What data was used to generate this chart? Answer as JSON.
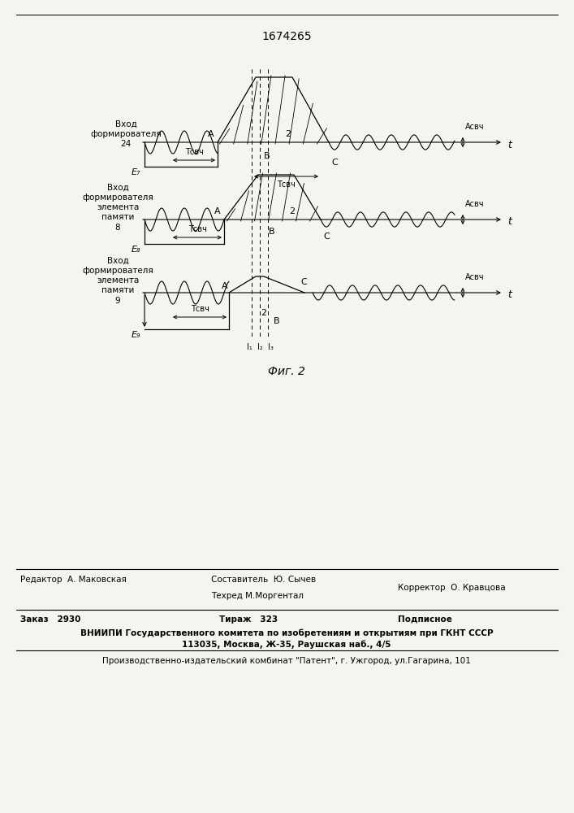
{
  "title": "1674265",
  "fig_label": "Фиг. 2",
  "bg_color": "#f5f5f0",
  "line_color": "#000000",
  "channel_labels": [
    "Вход\nформирователя\n24",
    "Вход\nформирователя\nэлемента\nпамяти\n8",
    "Вход\nформирователя\nэлемента\nпамяти\n9"
  ],
  "e_labels": [
    "E₇",
    "E₈",
    "E₉"
  ],
  "amplitude_label": "Асвч",
  "time_label": "t",
  "tsvch_label": "Тсвч",
  "footer_line1": "Редактор  А. Маковская",
  "footer_col2_line1": "Составитель  Ю. Сычев",
  "footer_col2_line2": "Техред М.Моргентал",
  "footer_col3": "Корректор  О. Кравцова",
  "footer_order": "Заказ   2930",
  "footer_tirazh": "Тираж   323",
  "footer_podpisnoe": "Подписное",
  "footer_vniipи": "ВНИИПИ Государственного комитета по изобретениям и открытиям при ГКНТ СССР",
  "footer_address": "113035, Москва, Ж-35, Раушская наб., 4/5",
  "footer_factory": "Производственно-издательский комбинат \"Патент\", г. Ужгород, ул.Гагарина, 101"
}
